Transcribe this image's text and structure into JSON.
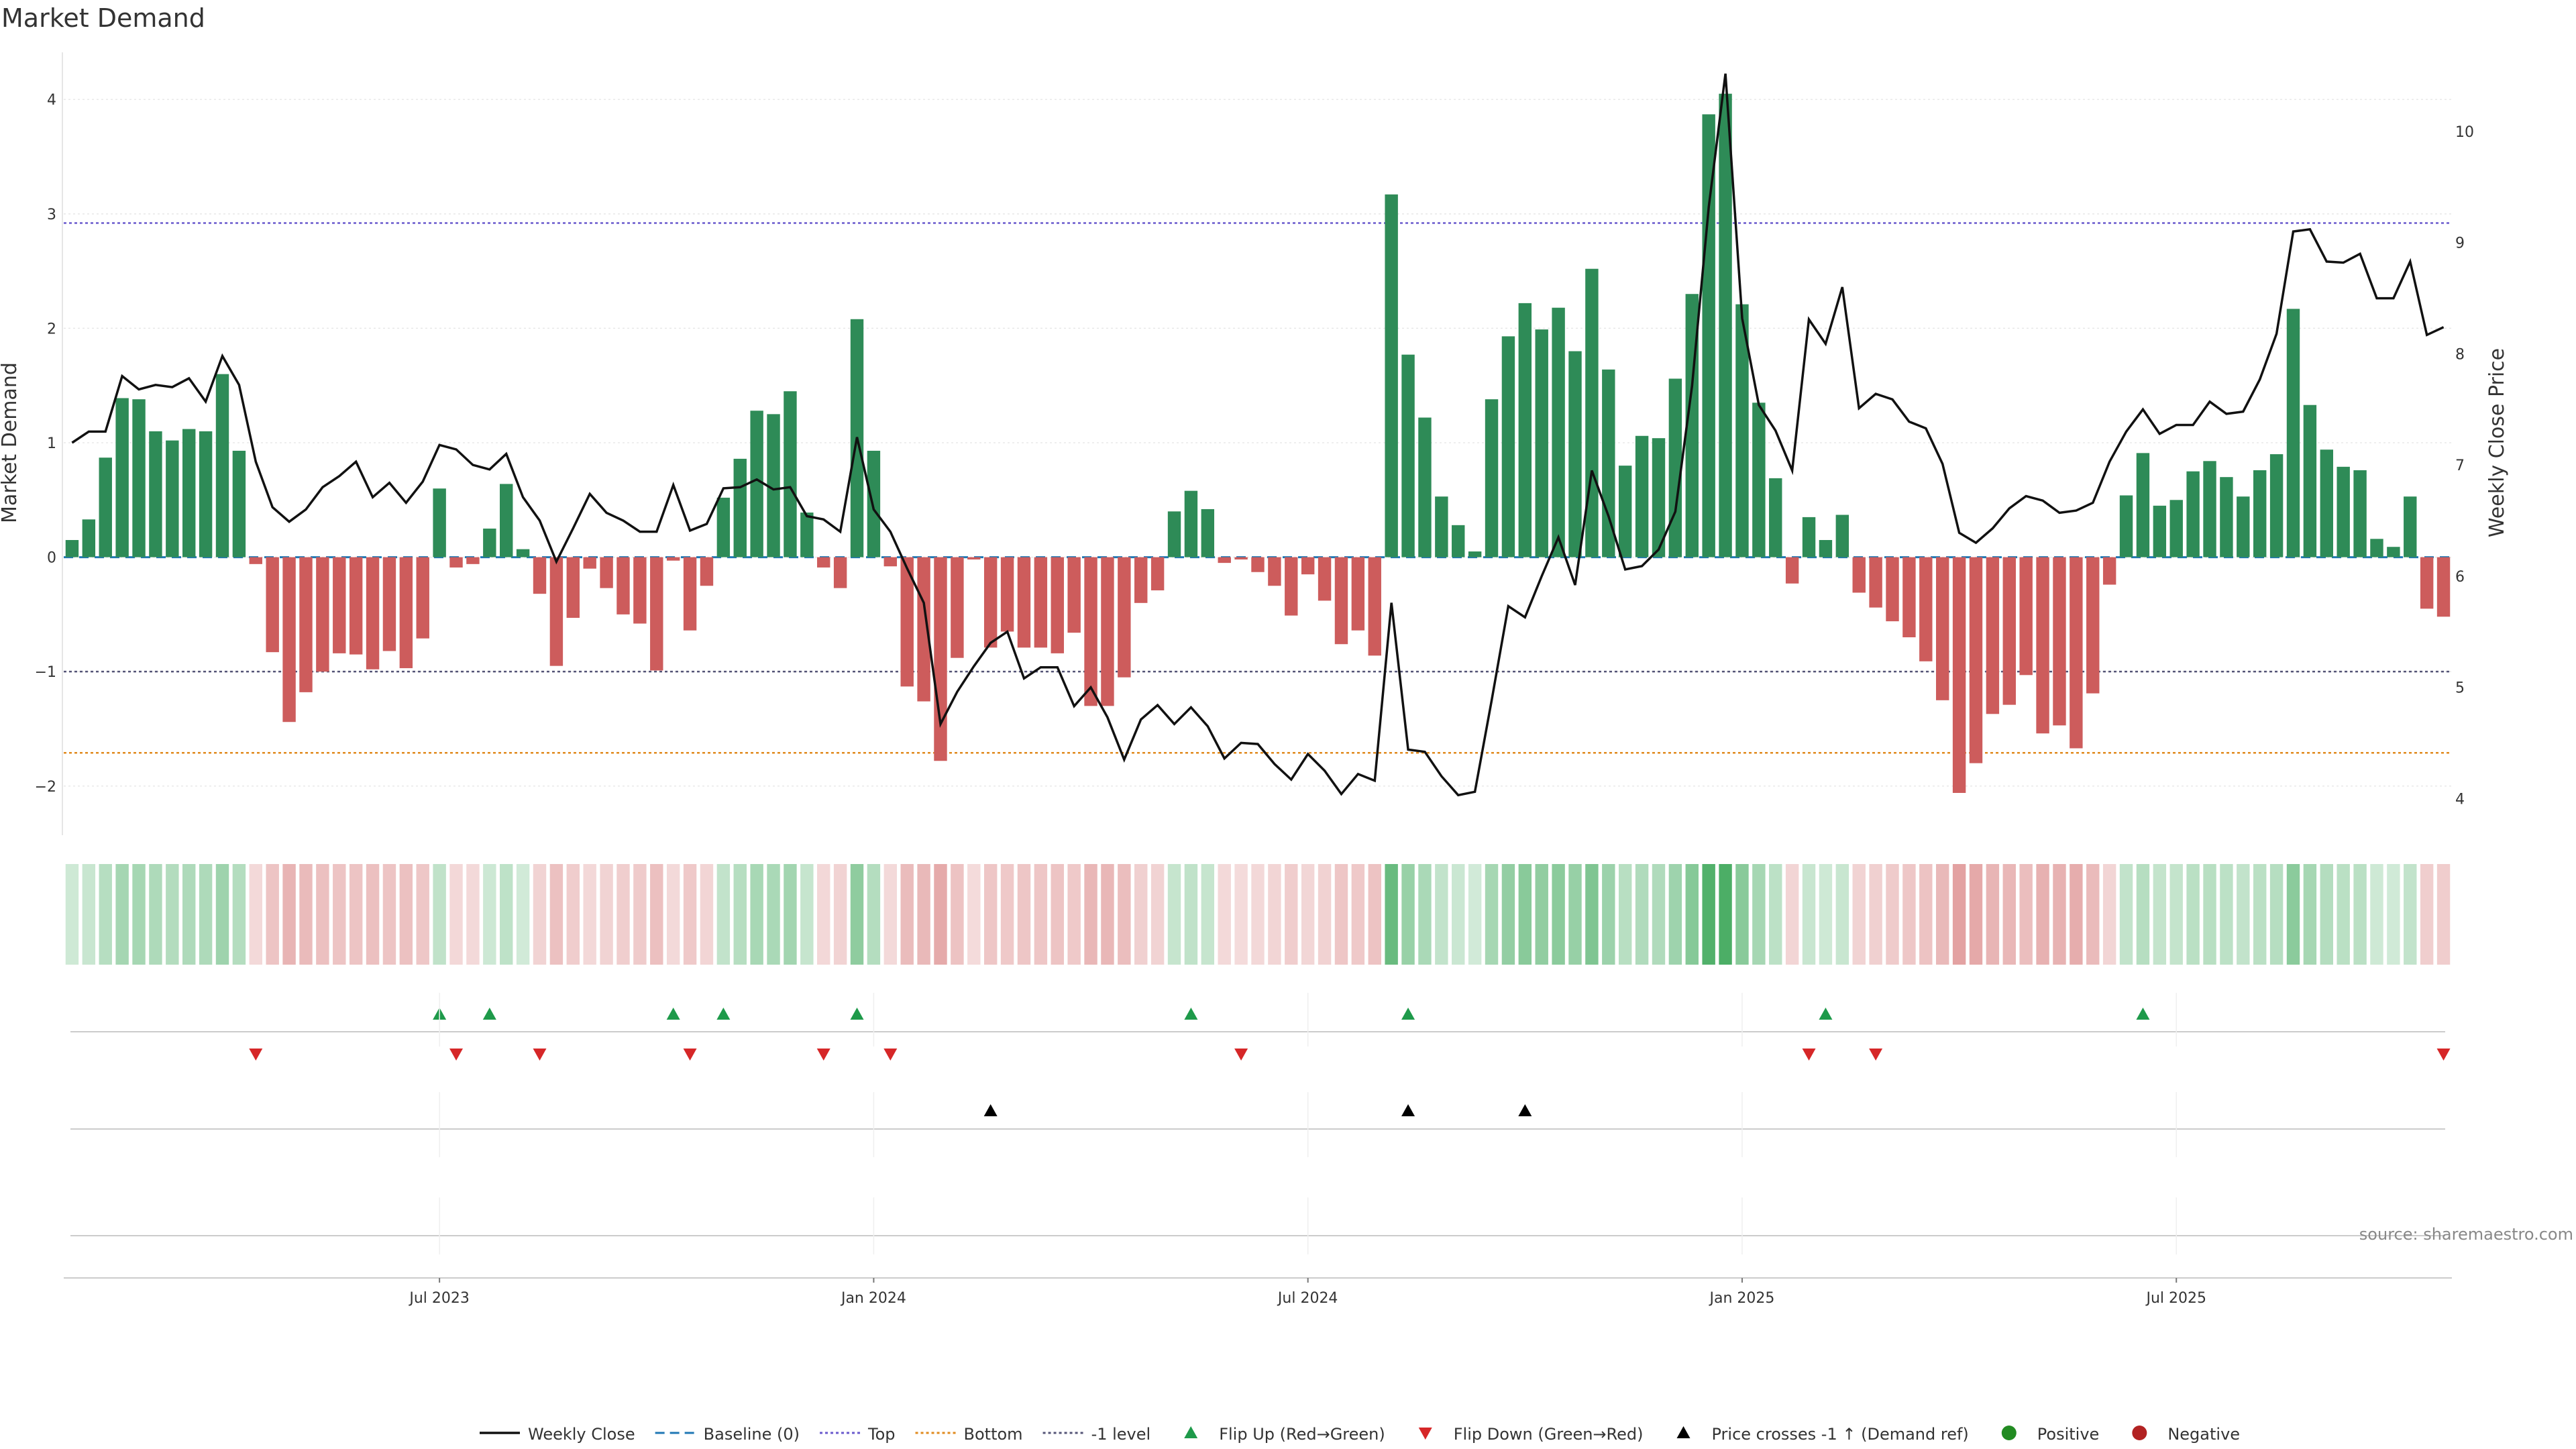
{
  "chart_data": {
    "type": "bar",
    "title": "Market Demand",
    "ylabel_left": "Market Demand",
    "ylabel_right": "Weekly Close Price",
    "ylim_left": [
      -2.4,
      4.4
    ],
    "ylim_right": [
      3.7,
      10.7
    ],
    "yticks_left": [
      -2,
      -1,
      0,
      1,
      2,
      3,
      4
    ],
    "yticks_left_labels": [
      "−2",
      "−1",
      "0",
      "1",
      "2",
      "3",
      "4"
    ],
    "yticks_right": [
      4,
      5,
      6,
      7,
      8,
      9,
      10
    ],
    "x_tick_labels": [
      "Jul 2023",
      "Jan 2024",
      "Jul 2024",
      "Jan 2025",
      "Jul 2025"
    ],
    "x_tick_weeks": [
      22,
      48,
      74,
      100,
      126
    ],
    "reference_lines": {
      "top": 2.92,
      "bottom": -1.71,
      "minus_one": -1.0,
      "baseline": 0
    },
    "demand": [
      0.15,
      0.33,
      0.87,
      1.39,
      1.38,
      1.1,
      1.02,
      1.12,
      1.1,
      1.6,
      0.93,
      -0.06,
      -0.83,
      -1.44,
      -1.18,
      -1.0,
      -0.84,
      -0.85,
      -0.98,
      -0.82,
      -0.97,
      -0.71,
      0.6,
      -0.09,
      -0.06,
      0.25,
      0.64,
      0.07,
      -0.32,
      -0.95,
      -0.53,
      -0.1,
      -0.27,
      -0.5,
      -0.58,
      -0.99,
      -0.03,
      -0.64,
      -0.25,
      0.52,
      0.86,
      1.28,
      1.25,
      1.45,
      0.39,
      -0.09,
      -0.27,
      2.08,
      0.93,
      -0.08,
      -1.13,
      -1.26,
      -1.78,
      -0.88,
      -0.02,
      -0.79,
      -0.65,
      -0.79,
      -0.79,
      -0.84,
      -0.66,
      -1.3,
      -1.3,
      -1.05,
      -0.4,
      -0.29,
      0.4,
      0.58,
      0.42,
      -0.05,
      -0.02,
      -0.13,
      -0.25,
      -0.51,
      -0.15,
      -0.38,
      -0.76,
      -0.64,
      -0.86,
      3.17,
      1.77,
      1.22,
      0.53,
      0.28,
      0.05,
      1.38,
      1.93,
      2.22,
      1.99,
      2.18,
      1.8,
      2.52,
      1.64,
      0.8,
      1.06,
      1.04,
      1.56,
      2.3,
      3.87,
      4.05,
      2.21,
      1.35,
      0.69,
      -0.23,
      0.35,
      0.15,
      0.37,
      -0.31,
      -0.44,
      -0.56,
      -0.7,
      -0.91,
      -1.25,
      -2.06,
      -1.8,
      -1.37,
      -1.29,
      -1.03,
      -1.54,
      -1.47,
      -1.67,
      -1.19,
      -0.24,
      0.54,
      0.91,
      0.45,
      0.5,
      0.75,
      0.84,
      0.7,
      0.53,
      0.76,
      0.9,
      2.17,
      1.33,
      0.94,
      0.79,
      0.76,
      0.16,
      0.09,
      0.53,
      -0.45,
      -0.52
    ],
    "close": [
      7.2,
      7.3,
      7.3,
      7.8,
      7.68,
      7.72,
      7.7,
      7.78,
      7.57,
      7.98,
      7.72,
      7.03,
      6.62,
      6.49,
      6.6,
      6.8,
      6.9,
      7.03,
      6.71,
      6.84,
      6.66,
      6.85,
      7.18,
      7.14,
      7.0,
      6.96,
      7.1,
      6.71,
      6.5,
      6.13,
      6.43,
      6.74,
      6.57,
      6.5,
      6.4,
      6.4,
      6.82,
      6.41,
      6.47,
      6.79,
      6.8,
      6.87,
      6.78,
      6.8,
      6.54,
      6.51,
      6.4,
      7.25,
      6.6,
      6.4,
      6.07,
      5.76,
      4.67,
      4.96,
      5.19,
      5.4,
      5.5,
      5.08,
      5.18,
      5.18,
      4.83,
      5.0,
      4.73,
      4.35,
      4.71,
      4.84,
      4.67,
      4.82,
      4.65,
      4.36,
      4.5,
      4.49,
      4.31,
      4.17,
      4.4,
      4.25,
      4.04,
      4.22,
      4.16,
      5.76,
      4.44,
      4.42,
      4.2,
      4.03,
      4.06,
      4.88,
      5.73,
      5.63,
      6.0,
      6.35,
      5.92,
      6.95,
      6.54,
      6.06,
      6.09,
      6.24,
      6.58,
      7.71,
      9.32,
      10.52,
      8.32,
      7.54,
      7.31,
      6.95,
      8.31,
      8.09,
      8.6,
      7.51,
      7.64,
      7.59,
      7.39,
      7.33,
      7.01,
      6.39,
      6.3,
      6.43,
      6.61,
      6.72,
      6.68,
      6.57,
      6.59,
      6.66,
      7.03,
      7.3,
      7.5,
      7.28,
      7.36,
      7.36,
      7.57,
      7.46,
      7.48,
      7.77,
      8.18,
      9.1,
      9.12,
      8.83,
      8.82,
      8.9,
      8.5,
      8.5,
      8.83,
      8.17,
      8.24
    ],
    "flip_up_weeks": [
      22,
      25,
      36,
      39,
      47,
      67,
      80,
      105,
      124
    ],
    "flip_down_weeks": [
      11,
      23,
      28,
      37,
      45,
      49,
      70,
      104,
      108,
      142
    ],
    "price_cross_weeks": [
      55,
      80,
      87
    ],
    "legend": [
      {
        "label": "Weekly Close",
        "kind": "line",
        "color": "#111111"
      },
      {
        "label": "Baseline (0)",
        "kind": "dash",
        "color": "#1f77b4"
      },
      {
        "label": "Top",
        "kind": "dot",
        "color": "#6a5acd"
      },
      {
        "label": "Bottom",
        "kind": "dot",
        "color": "#e08a1e"
      },
      {
        "label": "-1 level",
        "kind": "dot",
        "color": "#555577"
      },
      {
        "label": "Flip Up (Red→Green)",
        "kind": "tri-up",
        "color": "#1e9a4a"
      },
      {
        "label": "Flip Down (Green→Red)",
        "kind": "tri-down",
        "color": "#d62728"
      },
      {
        "label": "Price crosses -1 ↑ (Demand ref)",
        "kind": "tri-up",
        "color": "#000000"
      },
      {
        "label": "Positive",
        "kind": "circle",
        "color": "#228b22"
      },
      {
        "label": "Negative",
        "kind": "circle",
        "color": "#b22222"
      }
    ],
    "source": "source: sharemaestro.com",
    "colors": {
      "positive": "#2e8b57",
      "negative": "#cd5c5c",
      "close": "#111111",
      "baseline": "#1f77b4",
      "top": "#6a5acd",
      "bottom": "#e08a1e",
      "minus_one": "#555577",
      "flip_up": "#1e9a4a",
      "flip_down": "#d62728",
      "cross": "#000000"
    }
  }
}
